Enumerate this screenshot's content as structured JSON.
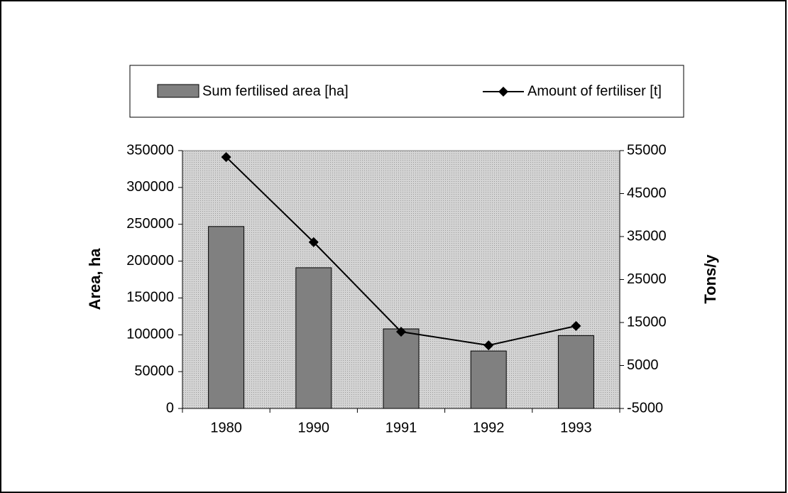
{
  "chart_data": {
    "type": "bar-line",
    "categories": [
      "1980",
      "1990",
      "1991",
      "1992",
      "1993"
    ],
    "series": [
      {
        "name": "Sum fertilised area [ha]",
        "color": "#808080",
        "values": [
          247000,
          191000,
          108000,
          78000,
          99000
        ]
      },
      {
        "name": "Amount of fertiliser [t]",
        "color": "#000000",
        "axis": "y2",
        "values": [
          53500,
          33700,
          12850,
          9700,
          14200
        ]
      }
    ],
    "ylabel": "Area, ha",
    "y2label": "Tons/y",
    "ylim": [
      0,
      350000
    ],
    "yticks": [
      0,
      50000,
      100000,
      150000,
      200000,
      250000,
      300000,
      350000
    ],
    "y2lim": [
      -5000,
      55000
    ],
    "y2ticks": [
      -5000,
      5000,
      15000,
      25000,
      35000,
      45000,
      55000
    ],
    "legend": "top"
  }
}
